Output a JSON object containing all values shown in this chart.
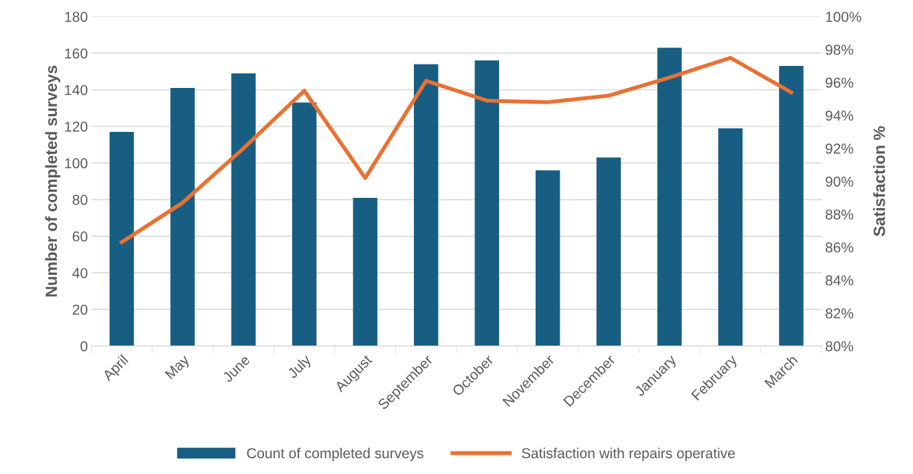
{
  "chart_data": {
    "type": "bar",
    "categories": [
      "April",
      "May",
      "June",
      "July",
      "August",
      "September",
      "October",
      "November",
      "December",
      "January",
      "February",
      "March"
    ],
    "series": [
      {
        "name": "Count of completed surveys",
        "color": "#175e82",
        "values": [
          117,
          141,
          149,
          133,
          81,
          154,
          156,
          96,
          103,
          163,
          119,
          153
        ]
      },
      {
        "name": "Satisfaction with repairs operative",
        "type": "line",
        "axis": "y2",
        "color": "#e97132",
        "values": [
          86.3,
          88.7,
          92.0,
          95.5,
          90.2,
          96.1,
          94.9,
          94.8,
          95.2,
          96.3,
          97.5,
          95.4
        ]
      }
    ],
    "ylabel": "Number of completed surveys",
    "y2label": "Satisfaction %",
    "ylim": [
      0,
      180
    ],
    "yticks": [
      0,
      20,
      40,
      60,
      80,
      100,
      120,
      140,
      160,
      180
    ],
    "y2lim": [
      80,
      100
    ],
    "y2ticks": [
      {
        "value": 80,
        "label": "80%"
      },
      {
        "value": 82,
        "label": "82%"
      },
      {
        "value": 84,
        "label": "84%"
      },
      {
        "value": 86,
        "label": "86%"
      },
      {
        "value": 88,
        "label": "88%"
      },
      {
        "value": 90,
        "label": "90%"
      },
      {
        "value": 92,
        "label": "92%"
      },
      {
        "value": 94,
        "label": "94%"
      },
      {
        "value": 96,
        "label": "96%"
      },
      {
        "value": 98,
        "label": "98%"
      },
      {
        "value": 100,
        "label": "100%"
      }
    ],
    "grid": "y",
    "legend": "bottom",
    "marker": "none",
    "line_style": "solid"
  }
}
